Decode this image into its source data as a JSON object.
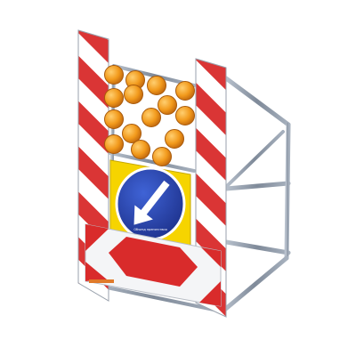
{
  "sign": {
    "small_label": "Объезд препятствия",
    "colors": {
      "stripe_red": "#d82a2a",
      "stripe_white": "#ffffff",
      "frame_metal": "#8b97a8",
      "lamp_orange": "#f29a1c",
      "lamp_dark": "#c46a10",
      "plate_yellow": "#f6d400",
      "disc_blue": "#2440a8",
      "arrow_white": "#ffffff",
      "chevron_red": "#d92b2b"
    },
    "lamp_grid": {
      "rows": 4,
      "cols": 4,
      "count": 15
    },
    "icons": {
      "mandatory_direction": "arrow-down-right-icon",
      "warning_lights": "warning-lamp-icon",
      "obstacle_board": "chevron-board-icon"
    }
  }
}
